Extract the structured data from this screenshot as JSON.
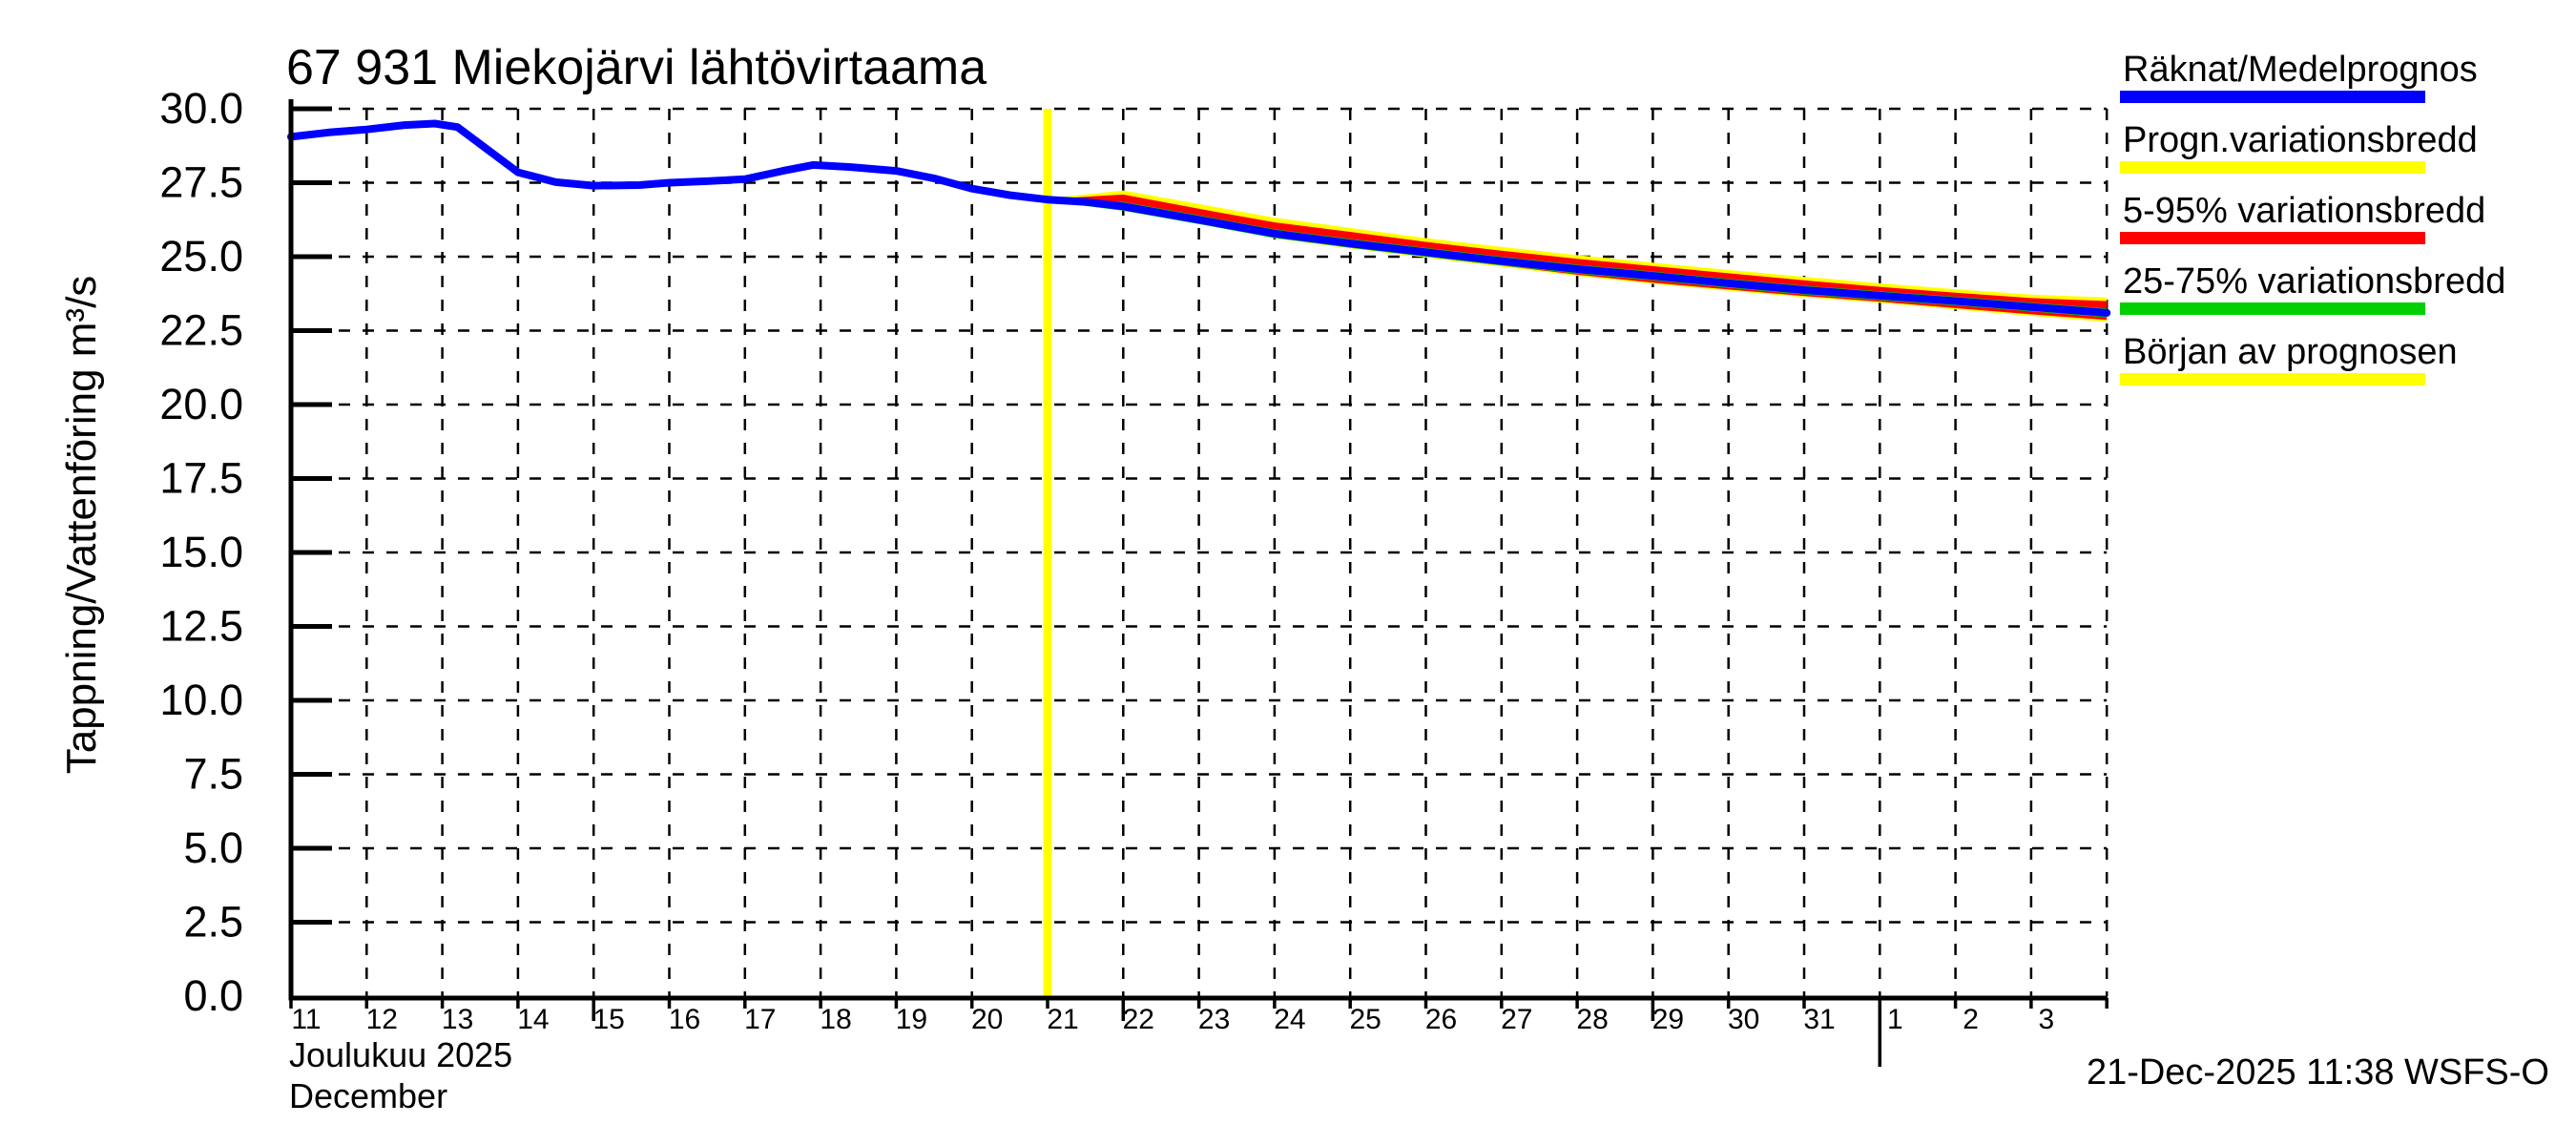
{
  "title": "67 931 Miekojärvi lähtövirtaama",
  "footer": {
    "timestamp": "21-Dec-2025 11:38 WSFS-O"
  },
  "y_axis": {
    "label": "Tappning/Vattenföring m³/s",
    "tick_labels": [
      "0.0",
      "2.5",
      "5.0",
      "7.5",
      "10.0",
      "12.5",
      "15.0",
      "17.5",
      "20.0",
      "22.5",
      "25.0",
      "27.5",
      "30.0"
    ],
    "tick_values": [
      0,
      2.5,
      5,
      7.5,
      10,
      12.5,
      15,
      17.5,
      20,
      22.5,
      25,
      27.5,
      30
    ]
  },
  "x_axis": {
    "month_label_fi": "Joulukuu  2025",
    "month_label_en": "December",
    "day_labels": [
      {
        "offset": 0,
        "label": "11"
      },
      {
        "offset": 1,
        "label": "12"
      },
      {
        "offset": 2,
        "label": "13"
      },
      {
        "offset": 3,
        "label": "14"
      },
      {
        "offset": 4,
        "label": "15"
      },
      {
        "offset": 5,
        "label": "16"
      },
      {
        "offset": 6,
        "label": "17"
      },
      {
        "offset": 7,
        "label": "18"
      },
      {
        "offset": 8,
        "label": "19"
      },
      {
        "offset": 9,
        "label": "20"
      },
      {
        "offset": 10,
        "label": "21"
      },
      {
        "offset": 11,
        "label": "22"
      },
      {
        "offset": 12,
        "label": "23"
      },
      {
        "offset": 13,
        "label": "24"
      },
      {
        "offset": 14,
        "label": "25"
      },
      {
        "offset": 15,
        "label": "26"
      },
      {
        "offset": 16,
        "label": "27"
      },
      {
        "offset": 17,
        "label": "28"
      },
      {
        "offset": 18,
        "label": "29"
      },
      {
        "offset": 19,
        "label": "30"
      },
      {
        "offset": 20,
        "label": "31"
      },
      {
        "offset": 21,
        "label": "1"
      },
      {
        "offset": 22,
        "label": "2"
      },
      {
        "offset": 23,
        "label": "3"
      }
    ]
  },
  "legend": [
    {
      "label": "Räknat/Medelprognos",
      "color": "#0000ff"
    },
    {
      "label": "Progn.variationsbredd",
      "color": "#ffff00"
    },
    {
      "label": "5-95% variationsbredd",
      "color": "#ff0000"
    },
    {
      "label": "25-75% variationsbredd",
      "color": "#00d000"
    },
    {
      "label": "Början av prognosen",
      "color": "#ffff00"
    }
  ],
  "forecast_start_line": {
    "color": "#ffff00",
    "day_offset": 10,
    "date": "21-Dec-2025"
  },
  "chart_data": {
    "type": "line",
    "title": "67 931 Miekojärvi lähtövirtaama",
    "ylabel": "Tappning/Vattenföring m³/s",
    "ylim": [
      0,
      30
    ],
    "ytick_step": 2.5,
    "grid": "dashed both axes",
    "legend_position": "outside top-right",
    "x_unit": "days since 2025-12-11",
    "x_range_days": [
      0,
      24
    ],
    "x_span": "11-Dec-2025 .. 4-Jan-2026",
    "forecast_start_offset": 10,
    "week_tick_offsets": [
      4,
      11,
      18
    ],
    "month_tick_offset": 21,
    "series": [
      {
        "name": "observed-and-mean",
        "legend": "Räknat/Medelprognos",
        "color": "#0000ff",
        "points": [
          [
            0,
            29.05
          ],
          [
            0.5,
            29.2
          ],
          [
            1,
            29.3
          ],
          [
            1.5,
            29.45
          ],
          [
            1.9,
            29.5
          ],
          [
            2.2,
            29.38
          ],
          [
            3,
            27.85
          ],
          [
            3.5,
            27.52
          ],
          [
            4,
            27.4
          ],
          [
            4.6,
            27.42
          ],
          [
            5,
            27.5
          ],
          [
            5.5,
            27.55
          ],
          [
            6,
            27.62
          ],
          [
            6.5,
            27.9
          ],
          [
            6.9,
            28.1
          ],
          [
            7.4,
            28.03
          ],
          [
            8,
            27.9
          ],
          [
            8.5,
            27.65
          ],
          [
            9,
            27.3
          ],
          [
            9.5,
            27.08
          ],
          [
            10,
            26.93
          ]
        ]
      },
      {
        "name": "forecast-mean",
        "legend": "Räknat/Medelprognos",
        "color": "#0000ff",
        "points": [
          [
            10,
            26.93
          ],
          [
            10.5,
            26.85
          ],
          [
            11,
            26.7
          ],
          [
            12,
            26.25
          ],
          [
            13,
            25.78
          ],
          [
            14,
            25.45
          ],
          [
            15,
            25.15
          ],
          [
            16,
            24.85
          ],
          [
            17,
            24.58
          ],
          [
            18,
            24.35
          ],
          [
            19,
            24.1
          ],
          [
            20,
            23.87
          ],
          [
            21,
            23.68
          ],
          [
            22,
            23.5
          ],
          [
            23,
            23.3
          ],
          [
            24,
            23.1
          ]
        ]
      }
    ],
    "bands": [
      {
        "name": "prognos-variationsbredd",
        "legend": "Progn.variationsbredd",
        "color": "#ffff00",
        "top": [
          [
            10,
            26.97
          ],
          [
            11,
            27.24
          ],
          [
            12,
            26.78
          ],
          [
            13,
            26.32
          ],
          [
            14,
            25.97
          ],
          [
            15,
            25.63
          ],
          [
            16,
            25.33
          ],
          [
            17,
            25.05
          ],
          [
            18,
            24.8
          ],
          [
            19,
            24.55
          ],
          [
            20,
            24.32
          ],
          [
            21,
            24.1
          ],
          [
            22,
            23.9
          ],
          [
            23,
            23.72
          ],
          [
            24,
            23.62
          ]
        ],
        "bottom": [
          [
            10,
            26.88
          ],
          [
            11,
            26.6
          ],
          [
            12,
            26.12
          ],
          [
            13,
            25.62
          ],
          [
            14,
            25.28
          ],
          [
            15,
            24.97
          ],
          [
            16,
            24.66
          ],
          [
            17,
            24.35
          ],
          [
            18,
            24.08
          ],
          [
            19,
            23.85
          ],
          [
            20,
            23.63
          ],
          [
            21,
            23.44
          ],
          [
            22,
            23.22
          ],
          [
            23,
            23.0
          ],
          [
            24,
            22.8
          ]
        ]
      },
      {
        "name": "variationsbredd-5-95",
        "legend": "5-95% variationsbredd",
        "color": "#ff0000",
        "top": [
          [
            10,
            26.95
          ],
          [
            11,
            27.1
          ],
          [
            12,
            26.62
          ],
          [
            13,
            26.16
          ],
          [
            14,
            25.84
          ],
          [
            15,
            25.5
          ],
          [
            16,
            25.2
          ],
          [
            17,
            24.93
          ],
          [
            18,
            24.68
          ],
          [
            19,
            24.44
          ],
          [
            20,
            24.2
          ],
          [
            21,
            23.98
          ],
          [
            22,
            23.78
          ],
          [
            23,
            23.6
          ],
          [
            24,
            23.5
          ]
        ],
        "bottom": [
          [
            10,
            26.9
          ],
          [
            11,
            26.63
          ],
          [
            12,
            26.16
          ],
          [
            13,
            25.66
          ],
          [
            14,
            25.32
          ],
          [
            15,
            25.01
          ],
          [
            16,
            24.7
          ],
          [
            17,
            24.39
          ],
          [
            18,
            24.12
          ],
          [
            19,
            23.89
          ],
          [
            20,
            23.67
          ],
          [
            21,
            23.48
          ],
          [
            22,
            23.26
          ],
          [
            23,
            23.05
          ],
          [
            24,
            22.86
          ]
        ]
      },
      {
        "name": "variationsbredd-25-75",
        "legend": "25-75% variationsbredd",
        "color": "#00d000",
        "top": [
          [
            10,
            26.95
          ],
          [
            11,
            26.85
          ],
          [
            12,
            26.4
          ],
          [
            13,
            25.93
          ],
          [
            14,
            25.6
          ],
          [
            15,
            25.3
          ],
          [
            16,
            25.0
          ],
          [
            17,
            24.73
          ],
          [
            18,
            24.5
          ],
          [
            19,
            24.25
          ],
          [
            20,
            24.02
          ],
          [
            21,
            23.83
          ],
          [
            22,
            23.65
          ],
          [
            23,
            23.45
          ],
          [
            24,
            23.25
          ]
        ],
        "bottom": [
          [
            10,
            26.88
          ],
          [
            11,
            26.55
          ],
          [
            12,
            26.1
          ],
          [
            13,
            25.63
          ],
          [
            14,
            25.3
          ],
          [
            15,
            25.0
          ],
          [
            16,
            24.7
          ],
          [
            17,
            24.43
          ],
          [
            18,
            24.2
          ],
          [
            19,
            23.95
          ],
          [
            20,
            23.72
          ],
          [
            21,
            23.53
          ],
          [
            22,
            23.35
          ],
          [
            23,
            23.15
          ],
          [
            24,
            22.95
          ]
        ]
      }
    ]
  }
}
